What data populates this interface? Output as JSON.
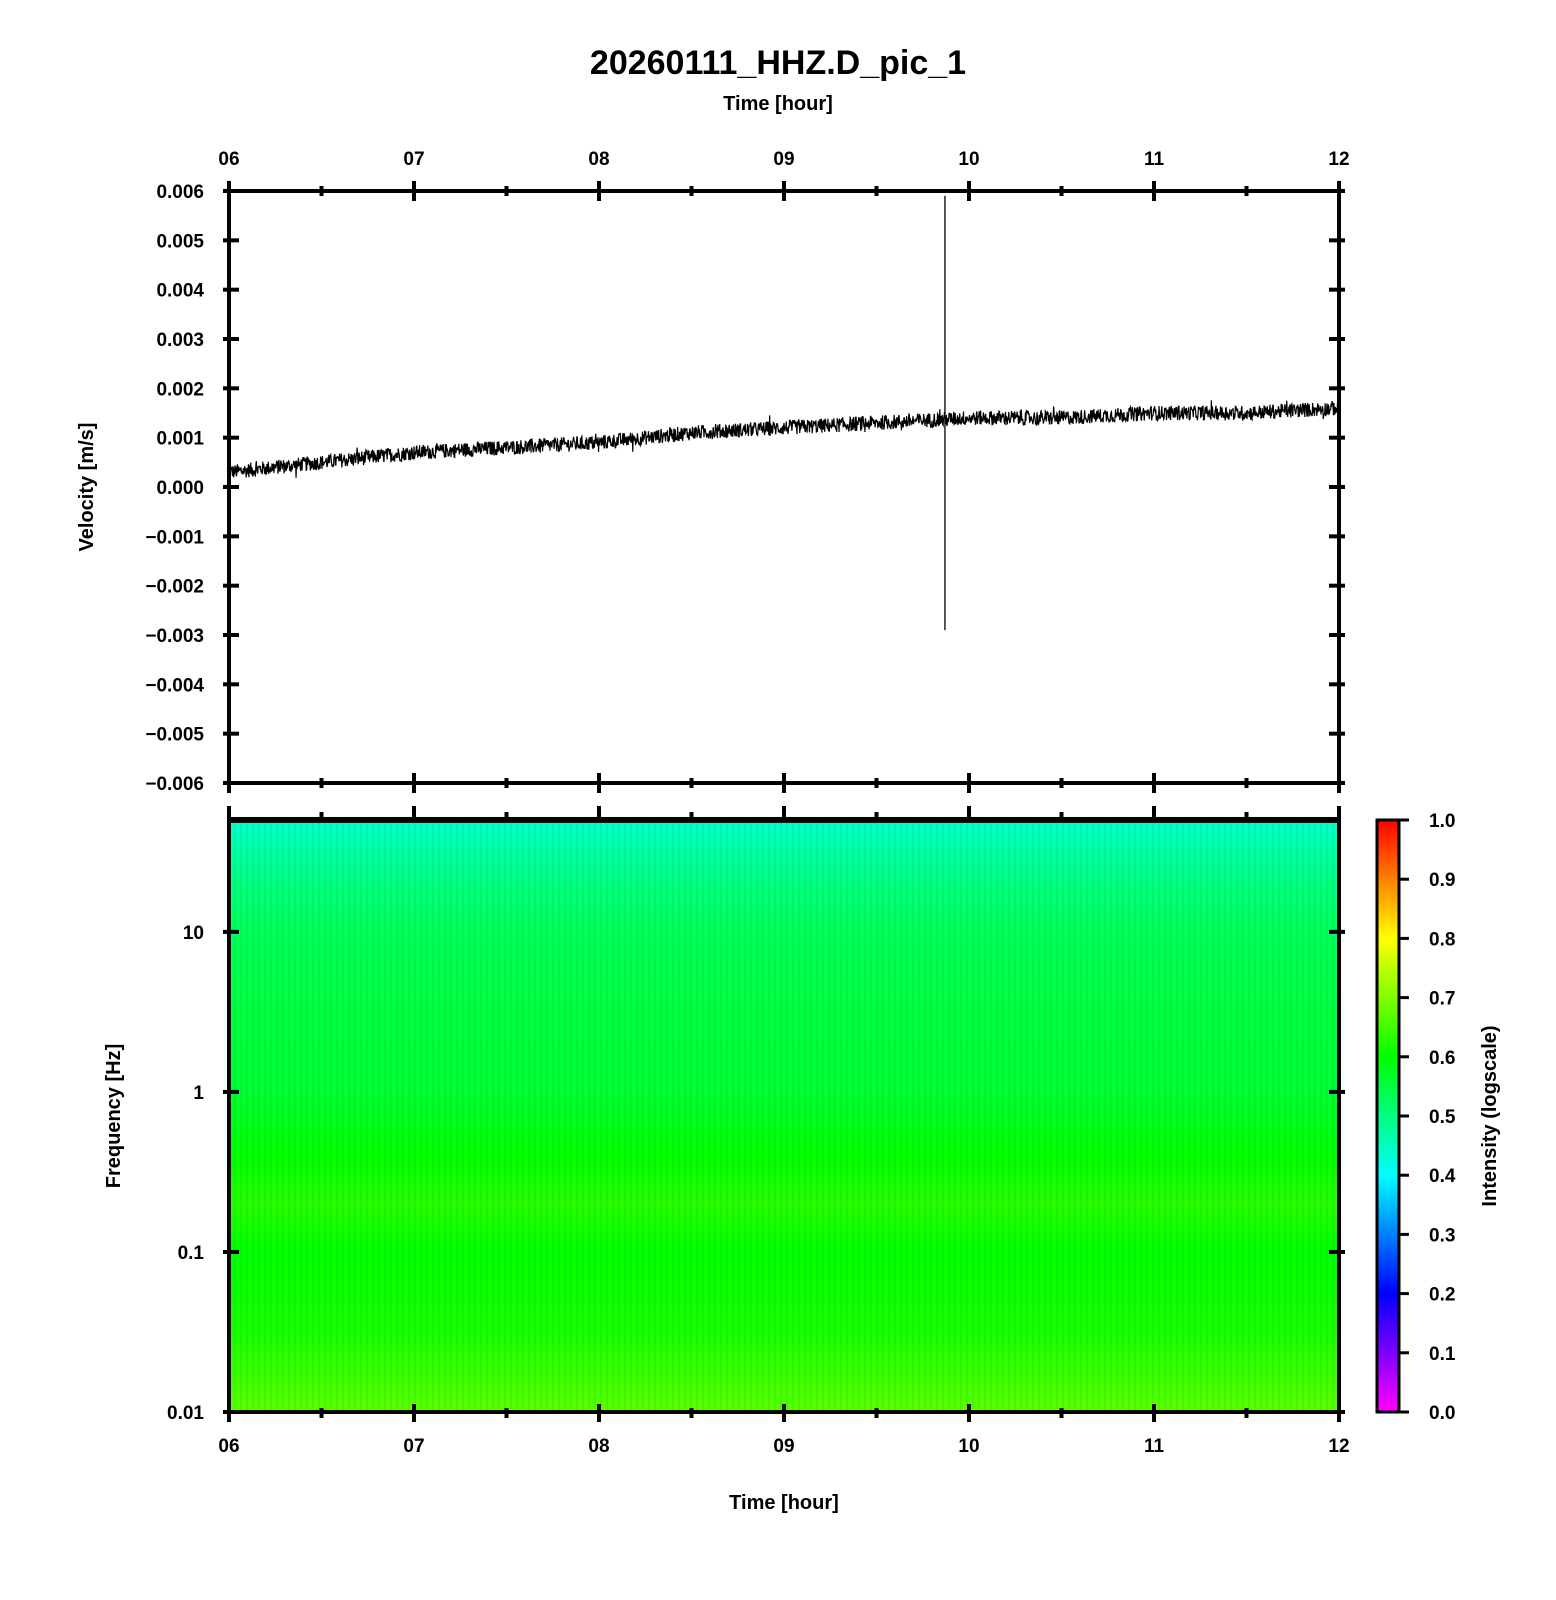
{
  "chart_data": [
    {
      "type": "line",
      "title": "20260111_HHZ.D_pic_1",
      "xlabel": "Time [hour]",
      "ylabel": "Velocity [m/s]",
      "x_ticks": [
        "06",
        "07",
        "08",
        "09",
        "10",
        "11",
        "12"
      ],
      "xlim": [
        6,
        12
      ],
      "y_ticks": [
        "0.006",
        "0.005",
        "0.004",
        "0.003",
        "0.002",
        "0.001",
        "0.000",
        "−0.001",
        "−0.002",
        "−0.003",
        "−0.004",
        "−0.005",
        "−0.006"
      ],
      "ylim": [
        -0.006,
        0.006
      ],
      "series": [
        {
          "x": [
            6.0,
            6.5,
            7.0,
            7.5,
            8.0,
            8.5,
            9.0,
            9.5,
            10.0,
            10.5,
            11.0,
            11.5,
            12.0
          ],
          "y": [
            0.0003,
            0.0005,
            0.0007,
            0.0008,
            0.0009,
            0.0011,
            0.0012,
            0.0013,
            0.0014,
            0.0014,
            0.0015,
            0.0015,
            0.0016
          ],
          "noise_amplitude": 0.00015
        }
      ],
      "spike": {
        "x": 9.87,
        "ymax": 0.0059,
        "ymin": -0.0029
      },
      "color": "#000000"
    },
    {
      "type": "heatmap",
      "xlabel": "Time [hour]",
      "ylabel": "Frequency [Hz]",
      "x_ticks": [
        "06",
        "07",
        "08",
        "09",
        "10",
        "11",
        "12"
      ],
      "xlim": [
        6,
        12
      ],
      "y_scale": "log",
      "y_ticks": [
        "10",
        "1",
        "0.1",
        "0.01"
      ],
      "y_tick_values": [
        10,
        1,
        0.1,
        0.01
      ],
      "ylim": [
        0.01,
        50
      ],
      "colorbar": {
        "label": "Intensity (logscale)",
        "ticks": [
          "0.0",
          "0.1",
          "0.2",
          "0.3",
          "0.4",
          "0.5",
          "0.6",
          "0.7",
          "0.8",
          "0.9",
          "1.0"
        ],
        "range": [
          0,
          1
        ],
        "colors": [
          "#ff00ff",
          "#0000ff",
          "#00ffff",
          "#00ff00",
          "#ffff00",
          "#ff0000"
        ]
      },
      "intensity_profile": [
        {
          "freq": 50,
          "intensity": 0.44
        },
        {
          "freq": 20,
          "intensity": 0.5
        },
        {
          "freq": 10,
          "intensity": 0.53
        },
        {
          "freq": 3,
          "intensity": 0.55
        },
        {
          "freq": 1,
          "intensity": 0.56
        },
        {
          "freq": 0.4,
          "intensity": 0.6
        },
        {
          "freq": 0.2,
          "intensity": 0.63
        },
        {
          "freq": 0.1,
          "intensity": 0.6
        },
        {
          "freq": 0.03,
          "intensity": 0.62
        },
        {
          "freq": 0.01,
          "intensity": 0.67
        }
      ]
    }
  ]
}
